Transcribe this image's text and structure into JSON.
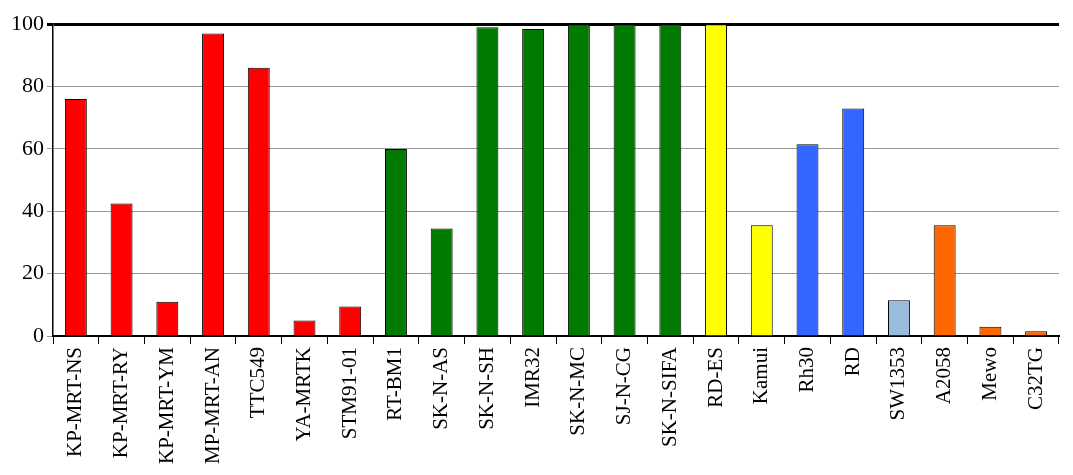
{
  "chart_data": {
    "type": "bar",
    "categories": [
      "KP-MRT-NS",
      "KP-MRT-RY",
      "KP-MRT-YM",
      "MP-MRT-AN",
      "TTC549",
      "YA-MRTK",
      "STM91-01",
      "RT-BM1",
      "SK-N-AS",
      "SK-N-SH",
      "IMR32",
      "SK-N-MC",
      "SJ-N-CG",
      "SK-N-SIFA",
      "RD-ES",
      "Kamui",
      "Rh30",
      "RD",
      "SW1353",
      "A2058",
      "Mewo",
      "C32TG"
    ],
    "values": [
      76,
      42.5,
      11,
      97,
      86,
      5,
      9.5,
      60,
      34.5,
      99,
      98.5,
      100,
      100,
      100,
      100,
      35.5,
      61.5,
      73,
      11.5,
      35.5,
      3,
      1.5
    ],
    "colors": [
      "#ff0000",
      "#ff0000",
      "#ff0000",
      "#ff0000",
      "#ff0000",
      "#ff0000",
      "#ff0000",
      "#007a00",
      "#007a00",
      "#007a00",
      "#007a00",
      "#007a00",
      "#007a00",
      "#007a00",
      "#ffff00",
      "#ffff00",
      "#3366ff",
      "#3366ff",
      "#99bbdd",
      "#ff6600",
      "#ff6600",
      "#ff6600"
    ],
    "ylim": [
      0,
      100
    ],
    "yticks": [
      0,
      20,
      40,
      60,
      80,
      100
    ],
    "grid": "y",
    "legend": false
  }
}
